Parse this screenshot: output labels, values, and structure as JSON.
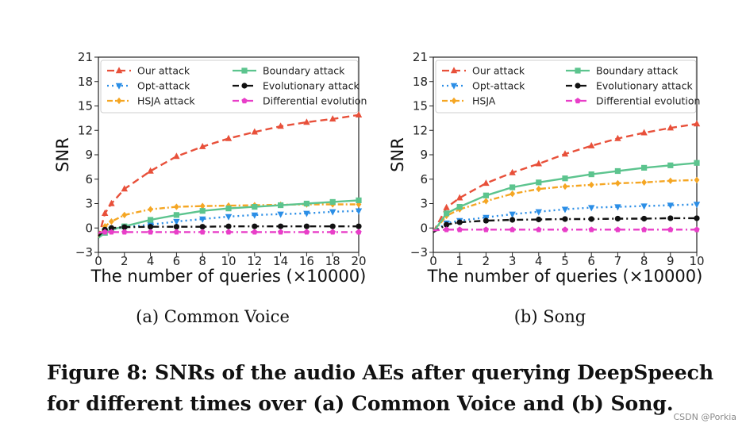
{
  "caption": {
    "line1": "Figure 8: SNRs of the audio AEs after querying DeepSpeech",
    "line2": "for different times over (a) Common Voice and (b) Song."
  },
  "watermark": "CSDN @Porkia",
  "chart_data": [
    {
      "type": "line",
      "subcaption": "(a)  Common Voice",
      "ylabel": "SNR",
      "xlabel": "The number of queries (×10000)",
      "xlim": [
        0,
        20
      ],
      "ylim": [
        -3,
        21
      ],
      "xticks": [
        0,
        2,
        4,
        6,
        8,
        10,
        12,
        14,
        16,
        18,
        20
      ],
      "yticks": [
        -3,
        0,
        3,
        6,
        9,
        12,
        15,
        18,
        21
      ],
      "grid": false,
      "legend": "top-left, two columns",
      "series": [
        {
          "name": "Our attack",
          "color": "#e8503a",
          "dash": "9,5",
          "marker": "triangle-up",
          "x": [
            0,
            0.5,
            1,
            2,
            4,
            6,
            8,
            10,
            12,
            14,
            16,
            18,
            20
          ],
          "y": [
            -1.2,
            1.8,
            3.0,
            4.8,
            7.0,
            8.8,
            10.0,
            11.0,
            11.8,
            12.5,
            13.0,
            13.4,
            13.9
          ]
        },
        {
          "name": "Opt-attack",
          "color": "#2b8ee6",
          "dash": "2,4",
          "marker": "triangle-down",
          "x": [
            0,
            0.5,
            1,
            2,
            4,
            6,
            8,
            10,
            12,
            14,
            16,
            18,
            20
          ],
          "y": [
            -1.2,
            -0.4,
            -0.2,
            0.1,
            0.4,
            0.8,
            1.1,
            1.4,
            1.6,
            1.7,
            1.8,
            2.0,
            2.1
          ]
        },
        {
          "name": "HSJA attack",
          "color": "#f5a623",
          "dash": "7,3,2,3",
          "marker": "diamond",
          "x": [
            0,
            0.5,
            1,
            2,
            4,
            6,
            8,
            10,
            12,
            14,
            16,
            18,
            20
          ],
          "y": [
            -1.2,
            0.2,
            0.8,
            1.6,
            2.3,
            2.6,
            2.7,
            2.75,
            2.8,
            2.85,
            2.9,
            2.9,
            2.9
          ]
        },
        {
          "name": "Boundary attack",
          "color": "#5cc48e",
          "dash": "",
          "marker": "square",
          "x": [
            0,
            0.5,
            1,
            2,
            4,
            6,
            8,
            10,
            12,
            14,
            16,
            18,
            20
          ],
          "y": [
            -1.2,
            -0.6,
            -0.2,
            0.2,
            1.0,
            1.6,
            2.1,
            2.4,
            2.6,
            2.8,
            3.0,
            3.2,
            3.4
          ]
        },
        {
          "name": "Evolutionary attack",
          "color": "#111111",
          "dash": "8,4,2,4",
          "marker": "circle",
          "x": [
            0,
            0.5,
            1,
            2,
            4,
            6,
            8,
            10,
            12,
            14,
            16,
            18,
            20
          ],
          "y": [
            -1.0,
            -0.2,
            0.0,
            0.1,
            0.15,
            0.15,
            0.15,
            0.2,
            0.2,
            0.2,
            0.2,
            0.2,
            0.2
          ]
        },
        {
          "name": "Differential evolution",
          "color": "#e83ec8",
          "dash": "8,4,2,4",
          "marker": "pentagon",
          "x": [
            0,
            0.5,
            1,
            2,
            4,
            6,
            8,
            10,
            12,
            14,
            16,
            18,
            20
          ],
          "y": [
            -0.6,
            -0.5,
            -0.5,
            -0.5,
            -0.5,
            -0.5,
            -0.5,
            -0.5,
            -0.5,
            -0.5,
            -0.5,
            -0.5,
            -0.5
          ]
        }
      ]
    },
    {
      "type": "line",
      "subcaption": "(b)  Song",
      "ylabel": "SNR",
      "xlabel": "The number of queries (×10000)",
      "xlim": [
        0,
        10
      ],
      "ylim": [
        -3,
        21
      ],
      "xticks": [
        0,
        1,
        2,
        3,
        4,
        5,
        6,
        7,
        8,
        9,
        10
      ],
      "yticks": [
        -3,
        0,
        3,
        6,
        9,
        12,
        15,
        18,
        21
      ],
      "grid": false,
      "legend": "top-left, two columns",
      "series": [
        {
          "name": "Our attack",
          "color": "#e8503a",
          "dash": "9,5",
          "marker": "triangle-up",
          "x": [
            0,
            0.5,
            1,
            2,
            3,
            4,
            5,
            6,
            7,
            8,
            9,
            10
          ],
          "y": [
            -0.5,
            2.5,
            3.7,
            5.5,
            6.8,
            7.9,
            9.1,
            10.1,
            11.0,
            11.7,
            12.3,
            12.8
          ]
        },
        {
          "name": "Opt-attack",
          "color": "#2b8ee6",
          "dash": "2,4",
          "marker": "triangle-down",
          "x": [
            0,
            0.5,
            1,
            2,
            3,
            4,
            5,
            6,
            7,
            8,
            9,
            10
          ],
          "y": [
            -0.5,
            0.6,
            0.9,
            1.3,
            1.7,
            2.0,
            2.3,
            2.5,
            2.6,
            2.7,
            2.8,
            2.9
          ]
        },
        {
          "name": "HSJA",
          "color": "#f5a623",
          "dash": "7,3,2,3",
          "marker": "diamond",
          "x": [
            0,
            0.5,
            1,
            2,
            3,
            4,
            5,
            6,
            7,
            8,
            9,
            10
          ],
          "y": [
            -0.5,
            1.5,
            2.3,
            3.3,
            4.2,
            4.8,
            5.1,
            5.3,
            5.5,
            5.6,
            5.8,
            5.9
          ]
        },
        {
          "name": "Boundary attack",
          "color": "#5cc48e",
          "dash": "",
          "marker": "square",
          "x": [
            0,
            0.5,
            1,
            2,
            3,
            4,
            5,
            6,
            7,
            8,
            9,
            10
          ],
          "y": [
            -0.5,
            1.8,
            2.6,
            4.0,
            5.0,
            5.6,
            6.1,
            6.6,
            7.0,
            7.4,
            7.7,
            8.0
          ]
        },
        {
          "name": "Evolutionary attack",
          "color": "#111111",
          "dash": "8,4,2,4",
          "marker": "circle",
          "x": [
            0,
            0.5,
            1,
            2,
            3,
            4,
            5,
            6,
            7,
            8,
            9,
            10
          ],
          "y": [
            -0.5,
            0.4,
            0.7,
            0.9,
            1.0,
            1.05,
            1.1,
            1.1,
            1.15,
            1.15,
            1.2,
            1.2
          ]
        },
        {
          "name": "Differential evolution",
          "color": "#e83ec8",
          "dash": "8,4,2,4",
          "marker": "pentagon",
          "x": [
            0,
            0.5,
            1,
            2,
            3,
            4,
            5,
            6,
            7,
            8,
            9,
            10
          ],
          "y": [
            -0.3,
            -0.2,
            -0.2,
            -0.2,
            -0.2,
            -0.2,
            -0.2,
            -0.2,
            -0.2,
            -0.2,
            -0.2,
            -0.2
          ]
        }
      ]
    }
  ]
}
